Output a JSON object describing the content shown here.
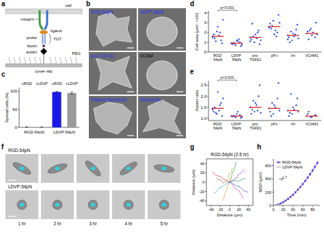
{
  "figure": {
    "panel_letters": [
      "a",
      "b",
      "c",
      "d",
      "e",
      "f",
      "g",
      "h"
    ],
    "a": {
      "labels": [
        "cell",
        "integrin",
        "probe",
        "ligand",
        "TGT",
        "biotin",
        "avidin",
        "PEG",
        "cover slip"
      ]
    },
    "b": {
      "images": [
        "RGD-54pN",
        "LDVP-54pN",
        "pro-TGF-β1",
        "VCAM",
        "Plasma fibronectin",
        "Vitronectin"
      ]
    },
    "f": {
      "rows": [
        "RGD-54pN",
        "LDVP-54pN"
      ],
      "times": [
        "1 hr",
        "2 hr",
        "3 hr",
        "4 hr",
        "5 hr"
      ]
    }
  },
  "chart_data": [
    {
      "type": "bar",
      "y_label": "Spread cells (%)",
      "categories": [
        "+RGD",
        "+LDVP",
        "+RGD",
        "+LDVP"
      ],
      "groups": [
        "RGD-54pN",
        "LDVP-54pN"
      ],
      "values": [
        0,
        0,
        98,
        95
      ],
      "errors": [
        0,
        0,
        1.5,
        3
      ],
      "colors": [
        "#000000",
        "#000000",
        "#1a1ae6",
        "#9a9a9a"
      ],
      "ylim": [
        0,
        110
      ],
      "yticks": [
        0,
        50,
        100
      ]
    },
    {
      "type": "dot",
      "y_label": "Cell area (μm², ×10³)",
      "annotation": "p<0.001",
      "color": "#2f4fe0",
      "categories": [
        "RGD 54pN",
        "LDVP 54pN",
        "pro TGFβ1",
        "pFn",
        "Vn",
        "VCAM1"
      ],
      "points": [
        [
          1.6,
          2.1,
          1.2,
          1.8,
          2.6,
          0.9,
          1.4,
          1.7,
          3.3,
          1.1,
          2.0,
          1.5
        ],
        [
          0.9,
          0.7,
          1.0,
          0.8,
          1.2,
          0.6,
          0.95,
          1.1,
          0.75,
          0.85,
          1.3,
          0.9
        ],
        [
          1.5,
          1.0,
          2.2,
          1.3,
          1.8,
          0.8,
          2.9,
          1.4,
          1.2,
          1.6,
          2.0,
          1.1
        ],
        [
          2.6,
          3.2,
          2.0,
          2.9,
          1.8,
          3.8,
          2.4,
          2.2,
          3.0,
          2.7,
          1.6,
          2.5
        ],
        [
          1.7,
          1.2,
          2.3,
          1.5,
          1.9,
          2.8,
          1.0,
          1.6,
          1.4,
          2.1,
          1.8,
          1.3
        ],
        [
          1.9,
          2.4,
          1.5,
          2.1,
          1.7,
          3.0,
          1.3,
          2.0,
          1.8,
          2.2
        ]
      ],
      "means": [
        1.6,
        0.9,
        1.5,
        2.6,
        1.7,
        1.9
      ],
      "ylim": [
        0,
        4.2
      ],
      "yticks": [
        0,
        1,
        2,
        3,
        4
      ]
    },
    {
      "type": "dot",
      "y_label": "Aspect ratio",
      "annotation": "p<0.001",
      "color": "#2f4fe0",
      "categories": [
        "RGD 54pN",
        "LDVP 54pN",
        "pro TGFβ1",
        "pFn",
        "Vn",
        "VCAM1"
      ],
      "points": [
        [
          1.45,
          1.2,
          1.7,
          1.3,
          2.2,
          1.1,
          1.5,
          1.35,
          1.9,
          1.25,
          1.6,
          1.4
        ],
        [
          1.1,
          1.05,
          1.15,
          1.08,
          1.2,
          1.02,
          1.12,
          1.3,
          1.06,
          1.1
        ],
        [
          1.5,
          1.3,
          2.0,
          1.2,
          1.7,
          2.5,
          1.4,
          1.6,
          1.25,
          1.8,
          1.35,
          1.5
        ],
        [
          1.45,
          1.2,
          1.9,
          1.3,
          1.6,
          2.6,
          1.1,
          1.5,
          1.35,
          1.7
        ],
        [
          1.35,
          1.2,
          1.6,
          1.1,
          1.5,
          1.9,
          1.25,
          1.4,
          1.3,
          2.1
        ],
        [
          1.1,
          1.05,
          1.15,
          1.2,
          1.08,
          1.12,
          1.3
        ]
      ],
      "means": [
        1.45,
        1.1,
        1.5,
        1.45,
        1.35,
        1.1
      ],
      "ylim": [
        0.9,
        2.7
      ],
      "yticks": [
        {
          "value": 1,
          "label": "1.0"
        },
        {
          "value": 1.5,
          "label": "1.5"
        },
        {
          "value": 2,
          "label": "2.0"
        },
        {
          "value": 2.5,
          "label": "2.5"
        }
      ]
    },
    {
      "type": "line",
      "title": "RGD-54pN (2-5 hr)",
      "x_label": "Distance (μm)",
      "y_label": "Distance (μm)",
      "xlim": [
        -50,
        50
      ],
      "ylim": [
        -50,
        50
      ],
      "xticks": [
        -40,
        -20,
        0,
        20,
        40
      ],
      "yticks": [
        -40,
        -20,
        0,
        20,
        40
      ],
      "series": [
        {
          "color": "#e03030",
          "x": [
            0,
            -5,
            -12,
            -20,
            -30,
            -38
          ],
          "values": [
            0,
            4,
            6,
            12,
            15,
            22
          ]
        },
        {
          "color": "#3050e0",
          "x": [
            0,
            6,
            14,
            22,
            30,
            40
          ],
          "values": [
            0,
            -3,
            -8,
            -10,
            -18,
            -22
          ]
        },
        {
          "color": "#30a040",
          "x": [
            0,
            3,
            5,
            9,
            12,
            14
          ],
          "values": [
            0,
            8,
            18,
            26,
            35,
            44
          ]
        },
        {
          "color": "#f09020",
          "x": [
            0,
            -4,
            -6,
            -10,
            -12,
            -15
          ],
          "values": [
            0,
            -7,
            -15,
            -24,
            -32,
            -40
          ]
        },
        {
          "color": "#9040c0",
          "x": [
            0,
            8,
            15,
            18,
            25,
            32
          ],
          "values": [
            0,
            5,
            9,
            16,
            20,
            28
          ]
        },
        {
          "color": "#20b0d0",
          "x": [
            0,
            -6,
            -15,
            -22,
            -28,
            -35
          ],
          "values": [
            0,
            -3,
            -9,
            -12,
            -20,
            -24
          ]
        },
        {
          "color": "#a0a020",
          "x": [
            0,
            2,
            -3,
            -1,
            3,
            6
          ],
          "values": [
            0,
            6,
            10,
            18,
            22,
            30
          ]
        },
        {
          "color": "#e040b0",
          "x": [
            0,
            7,
            12,
            20,
            24,
            30
          ],
          "values": [
            0,
            -6,
            -14,
            -18,
            -26,
            -35
          ]
        },
        {
          "color": "#a06030",
          "x": [
            0,
            -8,
            -14,
            -18,
            -26,
            -30
          ],
          "values": [
            0,
            2,
            -2,
            4,
            6,
            10
          ]
        },
        {
          "color": "#20907a",
          "x": [
            0,
            5,
            12,
            18,
            26,
            34
          ],
          "values": [
            0,
            1,
            4,
            2,
            6,
            8
          ]
        }
      ]
    },
    {
      "type": "line",
      "x_label": "Time (min)",
      "y_label": "MSD (μm²)",
      "legend": "top-left",
      "annotation": {
        "text": "~t",
        "superscript": "1.7"
      },
      "xlim": [
        0,
        95
      ],
      "ylim": [
        0,
        700
      ],
      "xticks": [
        0,
        20,
        40,
        60,
        80
      ],
      "yticks": [
        0,
        200,
        400,
        600
      ],
      "series": [
        {
          "name": "RGD-54pN",
          "color": "#5a3ad6",
          "marker": "circle",
          "x": [
            0,
            5,
            10,
            15,
            20,
            25,
            30,
            35,
            40,
            45,
            50,
            55,
            60,
            65,
            70,
            75,
            80,
            85,
            90
          ],
          "values": [
            0,
            5,
            15,
            30,
            50,
            73,
            99,
            128,
            161,
            197,
            236,
            277,
            321,
            368,
            418,
            470,
            525,
            582,
            640
          ],
          "errors": [
            0,
            1,
            2,
            3,
            5,
            7,
            9,
            11,
            13,
            15,
            17,
            19,
            21,
            23,
            25,
            27,
            29,
            31,
            33
          ]
        },
        {
          "name": "LDVP-54pN",
          "color": "#9a9a9a",
          "marker": "open-circle",
          "x": [
            0,
            5,
            10,
            15,
            20,
            25,
            30,
            35,
            40,
            45,
            50,
            55,
            60,
            65,
            70,
            75,
            80,
            85,
            90
          ],
          "values": [
            0,
            0.5,
            1,
            1,
            1.5,
            2,
            2,
            2.5,
            3,
            3,
            3.5,
            4,
            4,
            4.5,
            5,
            5,
            5.5,
            6,
            6
          ],
          "errors": [
            0,
            0,
            0,
            0,
            0,
            0,
            0,
            0,
            0,
            0,
            0,
            0,
            0,
            0,
            0,
            0,
            0,
            0,
            0
          ]
        }
      ]
    }
  ]
}
